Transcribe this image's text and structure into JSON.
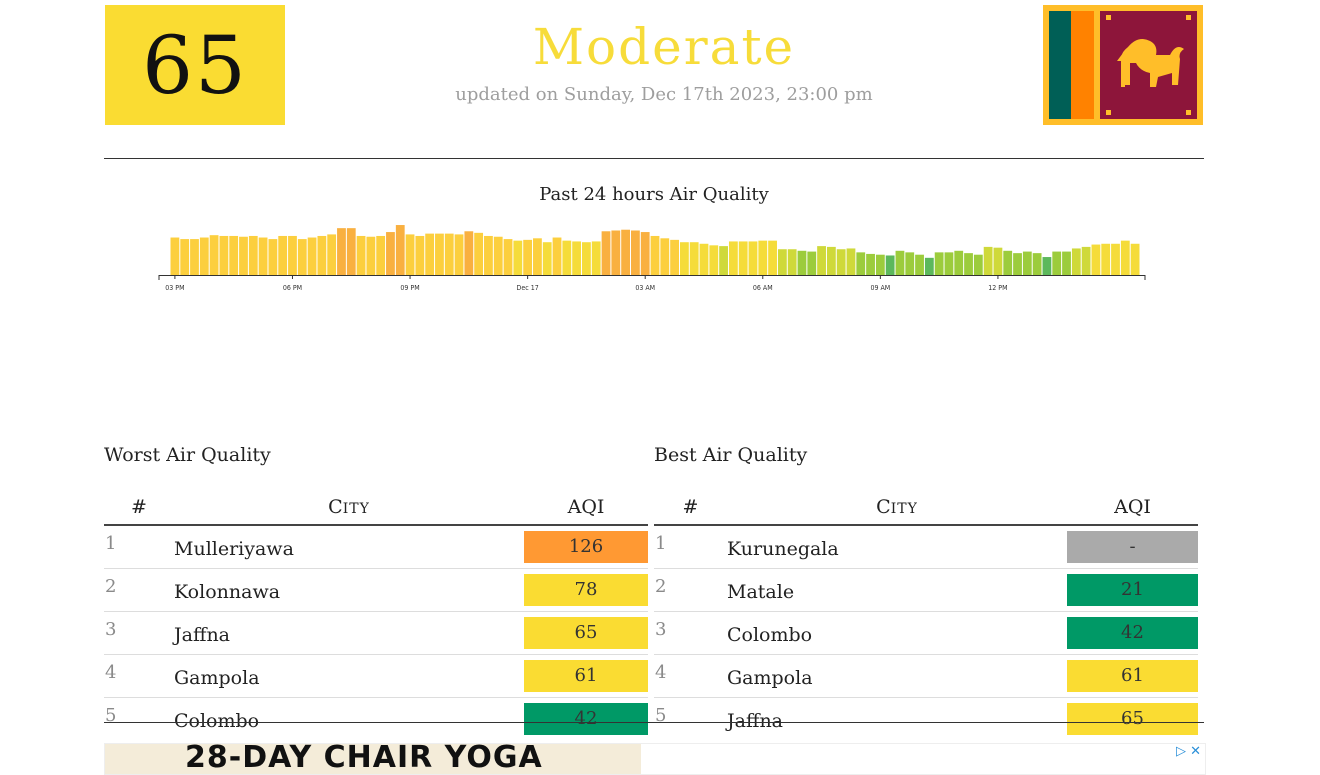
{
  "current": {
    "aqi": "65",
    "status": "Moderate",
    "updated": "updated on Sunday, Dec 17th 2023, 23:00 pm",
    "color": "#fadc32"
  },
  "country_flag": "sri-lanka-flag",
  "chart_data": {
    "type": "bar",
    "title": "Past 24 hours Air Quality",
    "xlabel": "",
    "ylabel": "",
    "x_ticks": [
      "03 PM",
      "06 PM",
      "09 PM",
      "Dec 17",
      "03 AM",
      "06 AM",
      "09 AM",
      "12 PM"
    ],
    "values": [
      48,
      46,
      46,
      48,
      51,
      50,
      50,
      49,
      50,
      48,
      46,
      50,
      50,
      46,
      48,
      50,
      52,
      60,
      60,
      50,
      49,
      50,
      55,
      64,
      52,
      50,
      53,
      53,
      53,
      52,
      56,
      54,
      50,
      49,
      46,
      44,
      45,
      47,
      42,
      48,
      44,
      43,
      42,
      43,
      56,
      57,
      58,
      57,
      55,
      50,
      47,
      45,
      42,
      42,
      40,
      38,
      37,
      43,
      43,
      43,
      44,
      44,
      33,
      33,
      31,
      30,
      37,
      36,
      33,
      34,
      29,
      27,
      26,
      25,
      31,
      29,
      26,
      22,
      29,
      29,
      31,
      28,
      26,
      36,
      35,
      31,
      28,
      30,
      28,
      23,
      30,
      30,
      34,
      36,
      39,
      40,
      40,
      44,
      40
    ],
    "ylim": [
      0,
      130
    ],
    "colors": {
      "good": "#009966",
      "moderate": "#fadc32",
      "unhealthy_sensitive": "#ff9933"
    }
  },
  "worst": {
    "title": "Worst Air Quality",
    "headers": {
      "rank": "#",
      "city_first": "C",
      "city_rest": "ITY",
      "aqi": "AQI"
    },
    "rows": [
      {
        "rank": "1",
        "city": "Mulleriyawa",
        "aqi": "126",
        "color": "#ff9933"
      },
      {
        "rank": "2",
        "city": "Kolonnawa",
        "aqi": "78",
        "color": "#fadc32"
      },
      {
        "rank": "3",
        "city": "Jaffna",
        "aqi": "65",
        "color": "#fadc32"
      },
      {
        "rank": "4",
        "city": "Gampola",
        "aqi": "61",
        "color": "#fadc32"
      },
      {
        "rank": "5",
        "city": "Colombo",
        "aqi": "42",
        "color": "#009966"
      }
    ]
  },
  "best": {
    "title": "Best Air Quality",
    "headers": {
      "rank": "#",
      "city_first": "C",
      "city_rest": "ITY",
      "aqi": "AQI"
    },
    "rows": [
      {
        "rank": "1",
        "city": "Kurunegala",
        "aqi": "-",
        "color": "#aaaaaa"
      },
      {
        "rank": "2",
        "city": "Matale",
        "aqi": "21",
        "color": "#009966"
      },
      {
        "rank": "3",
        "city": "Colombo",
        "aqi": "42",
        "color": "#009966"
      },
      {
        "rank": "4",
        "city": "Gampola",
        "aqi": "61",
        "color": "#fadc32"
      },
      {
        "rank": "5",
        "city": "Jaffna",
        "aqi": "65",
        "color": "#fadc32"
      }
    ]
  },
  "ad": {
    "headline": "28-DAY CHAIR YOGA",
    "icons": [
      "adchoices-icon",
      "close-icon"
    ]
  }
}
